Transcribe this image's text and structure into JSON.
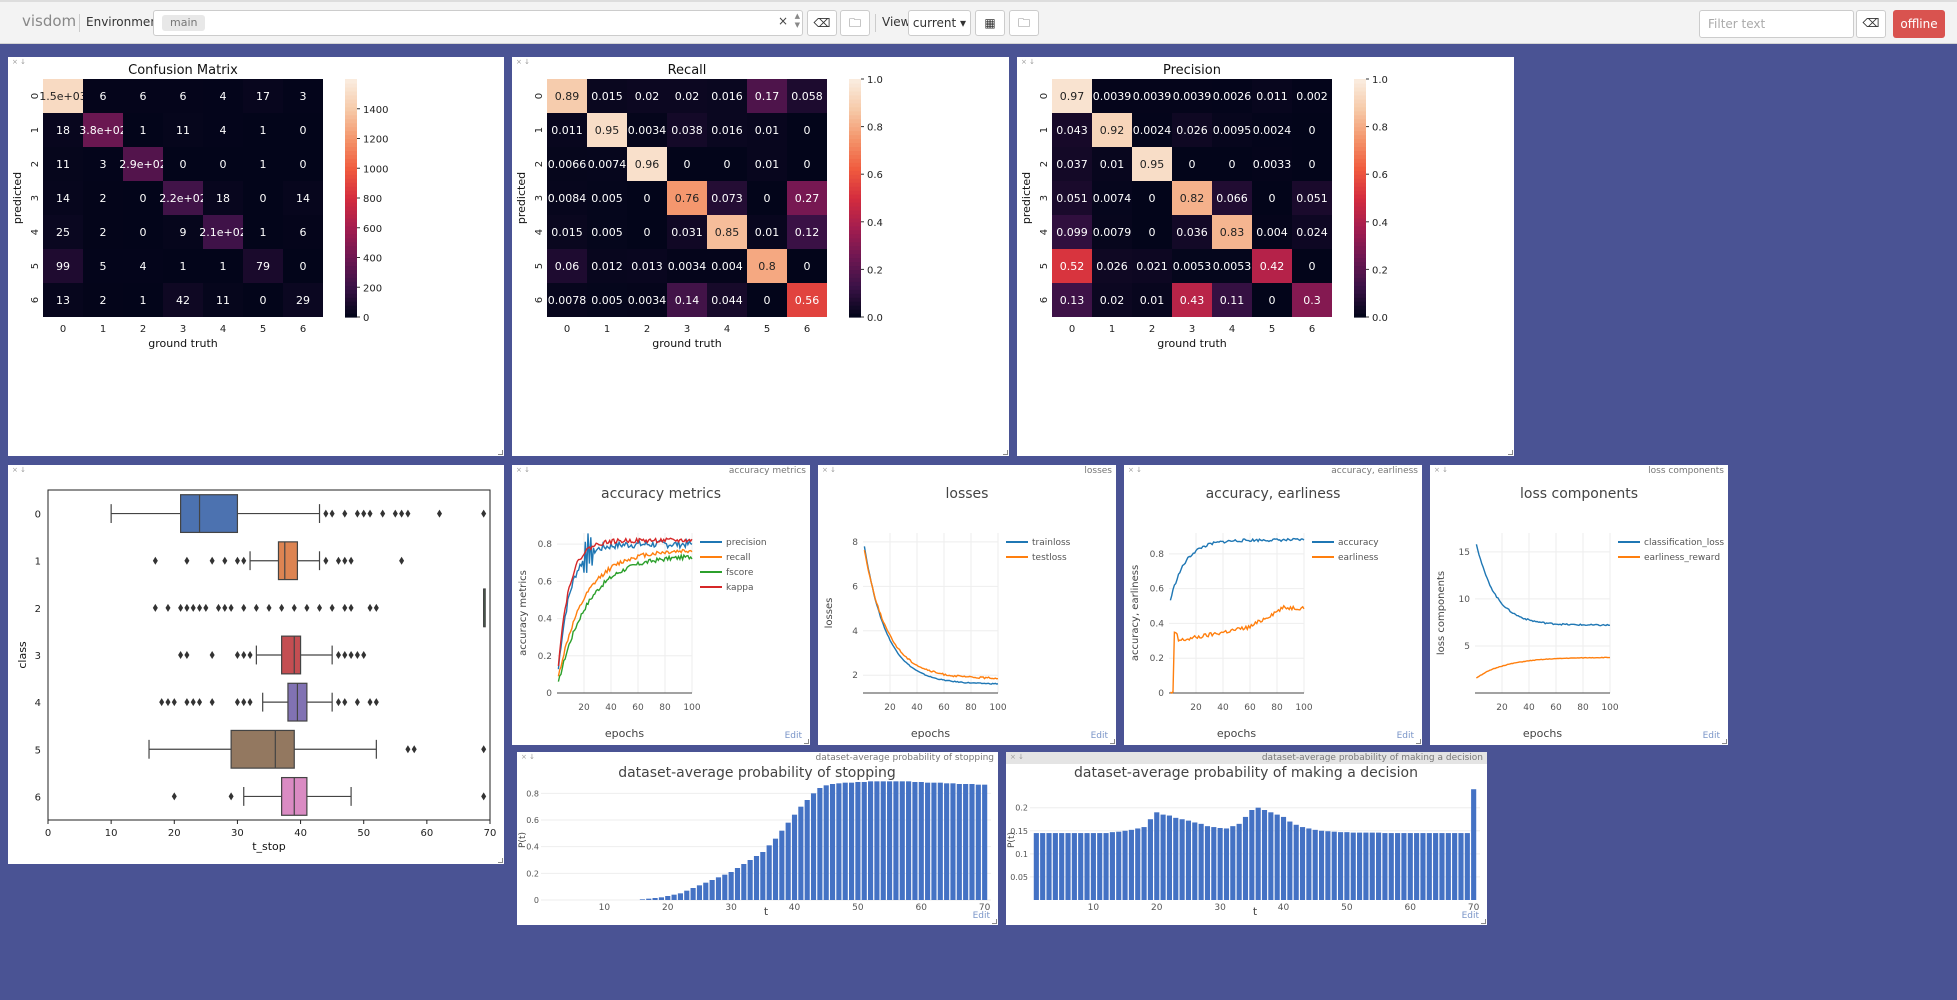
{
  "app": {
    "brand": "visdom",
    "env_label": "Environment",
    "env_value": "main",
    "view_label": "View",
    "view_value": "current",
    "filter_placeholder": "Filter text",
    "offline_label": "offline"
  },
  "panes": {
    "box": {
      "title": "",
      "xlabel": "t_stop",
      "ylabel": "class"
    },
    "acc": {
      "title": "accuracy metrics",
      "header": "accuracy metrics",
      "edit": "Edit"
    },
    "losses": {
      "title": "losses",
      "header": "losses",
      "edit": "Edit"
    },
    "ae": {
      "title": "accuracy, earliness",
      "header": "accuracy, earliness",
      "edit": "Edit"
    },
    "lc": {
      "title": "loss components",
      "header": "loss components",
      "edit": "Edit"
    },
    "stop": {
      "title": "dataset-average probability of stopping",
      "header": "dataset-average probability of stopping",
      "edit": "Edit"
    },
    "dec": {
      "title": "dataset-average probability of making a decision",
      "header": "dataset-average probability of making a decision",
      "edit": "Edit"
    }
  },
  "chart_data": [
    {
      "id": "cm",
      "type": "heatmap",
      "title": "Confusion Matrix",
      "xlabel": "ground truth",
      "ylabel": "predicted",
      "categories": [
        "0",
        "1",
        "2",
        "3",
        "4",
        "5",
        "6"
      ],
      "vmin": 0,
      "vmax": 1600,
      "colorbar_ticks": [
        "0",
        "200",
        "400",
        "600",
        "800",
        "1000",
        "1200",
        "1400"
      ],
      "colorbar_tick_values": [
        0,
        200,
        400,
        600,
        800,
        1000,
        1200,
        1400
      ],
      "values": [
        [
          1500,
          6,
          6,
          6,
          4,
          17,
          3
        ],
        [
          18,
          380,
          1,
          11,
          4,
          1,
          0
        ],
        [
          11,
          3,
          290,
          0,
          0,
          1,
          0
        ],
        [
          14,
          2,
          0,
          220,
          18,
          0,
          14
        ],
        [
          25,
          2,
          0,
          9,
          210,
          1,
          6
        ],
        [
          99,
          5,
          4,
          1,
          1,
          79,
          0
        ],
        [
          13,
          2,
          1,
          42,
          11,
          0,
          29
        ]
      ],
      "labels": [
        [
          "1.5e+03",
          "6",
          "6",
          "6",
          "4",
          "17",
          "3"
        ],
        [
          "18",
          "3.8e+02",
          "1",
          "11",
          "4",
          "1",
          "0"
        ],
        [
          "11",
          "3",
          "2.9e+02",
          "0",
          "0",
          "1",
          "0"
        ],
        [
          "14",
          "2",
          "0",
          "2.2e+02",
          "18",
          "0",
          "14"
        ],
        [
          "25",
          "2",
          "0",
          "9",
          "2.1e+02",
          "1",
          "6"
        ],
        [
          "99",
          "5",
          "4",
          "1",
          "1",
          "79",
          "0"
        ],
        [
          "13",
          "2",
          "1",
          "42",
          "11",
          "0",
          "29"
        ]
      ]
    },
    {
      "id": "rec",
      "type": "heatmap",
      "title": "Recall",
      "xlabel": "ground truth",
      "ylabel": "predicted",
      "categories": [
        "0",
        "1",
        "2",
        "3",
        "4",
        "5",
        "6"
      ],
      "vmin": 0,
      "vmax": 1,
      "colorbar_ticks": [
        "0.0",
        "0.2",
        "0.4",
        "0.6",
        "0.8",
        "1.0"
      ],
      "colorbar_tick_values": [
        0,
        0.2,
        0.4,
        0.6,
        0.8,
        1.0
      ],
      "values": [
        [
          0.89,
          0.015,
          0.02,
          0.02,
          0.016,
          0.17,
          0.058
        ],
        [
          0.011,
          0.95,
          0.0034,
          0.038,
          0.016,
          0.01,
          0
        ],
        [
          0.0066,
          0.0074,
          0.96,
          0,
          0,
          0.01,
          0
        ],
        [
          0.0084,
          0.005,
          0,
          0.76,
          0.073,
          0,
          0.27
        ],
        [
          0.015,
          0.005,
          0,
          0.031,
          0.85,
          0.01,
          0.12
        ],
        [
          0.06,
          0.012,
          0.013,
          0.0034,
          0.004,
          0.8,
          0
        ],
        [
          0.0078,
          0.005,
          0.0034,
          0.14,
          0.044,
          0,
          0.56
        ]
      ],
      "labels": [
        [
          "0.89",
          "0.015",
          "0.02",
          "0.02",
          "0.016",
          "0.17",
          "0.058"
        ],
        [
          "0.011",
          "0.95",
          "0.0034",
          "0.038",
          "0.016",
          "0.01",
          "0"
        ],
        [
          "0.0066",
          "0.0074",
          "0.96",
          "0",
          "0",
          "0.01",
          "0"
        ],
        [
          "0.0084",
          "0.005",
          "0",
          "0.76",
          "0.073",
          "0",
          "0.27"
        ],
        [
          "0.015",
          "0.005",
          "0",
          "0.031",
          "0.85",
          "0.01",
          "0.12"
        ],
        [
          "0.06",
          "0.012",
          "0.013",
          "0.0034",
          "0.004",
          "0.8",
          "0"
        ],
        [
          "0.0078",
          "0.005",
          "0.0034",
          "0.14",
          "0.044",
          "0",
          "0.56"
        ]
      ]
    },
    {
      "id": "prec",
      "type": "heatmap",
      "title": "Precision",
      "xlabel": "ground truth",
      "ylabel": "predicted",
      "categories": [
        "0",
        "1",
        "2",
        "3",
        "4",
        "5",
        "6"
      ],
      "vmin": 0,
      "vmax": 1,
      "colorbar_ticks": [
        "0.0",
        "0.2",
        "0.4",
        "0.6",
        "0.8",
        "1.0"
      ],
      "colorbar_tick_values": [
        0,
        0.2,
        0.4,
        0.6,
        0.8,
        1.0
      ],
      "values": [
        [
          0.97,
          0.0039,
          0.0039,
          0.0039,
          0.0026,
          0.011,
          0.002
        ],
        [
          0.043,
          0.92,
          0.0024,
          0.026,
          0.0095,
          0.0024,
          0
        ],
        [
          0.037,
          0.01,
          0.95,
          0,
          0,
          0.0033,
          0
        ],
        [
          0.051,
          0.0074,
          0,
          0.82,
          0.066,
          0,
          0.051
        ],
        [
          0.099,
          0.0079,
          0,
          0.036,
          0.83,
          0.004,
          0.024
        ],
        [
          0.52,
          0.026,
          0.021,
          0.0053,
          0.0053,
          0.42,
          0
        ],
        [
          0.13,
          0.02,
          0.01,
          0.43,
          0.11,
          0,
          0.3
        ]
      ],
      "labels": [
        [
          "0.97",
          "0.0039",
          "0.0039",
          "0.0039",
          "0.0026",
          "0.011",
          "0.002"
        ],
        [
          "0.043",
          "0.92",
          "0.0024",
          "0.026",
          "0.0095",
          "0.0024",
          "0"
        ],
        [
          "0.037",
          "0.01",
          "0.95",
          "0",
          "0",
          "0.0033",
          "0"
        ],
        [
          "0.051",
          "0.0074",
          "0",
          "0.82",
          "0.066",
          "0",
          "0.051"
        ],
        [
          "0.099",
          "0.0079",
          "0",
          "0.036",
          "0.83",
          "0.004",
          "0.024"
        ],
        [
          "0.52",
          "0.026",
          "0.021",
          "0.0053",
          "0.0053",
          "0.42",
          "0"
        ],
        [
          "0.13",
          "0.02",
          "0.01",
          "0.43",
          "0.11",
          "0",
          "0.3"
        ]
      ]
    },
    {
      "id": "box",
      "type": "box",
      "title": "",
      "xlabel": "t_stop",
      "ylabel": "class",
      "xlim": [
        0,
        70
      ],
      "xticks": [
        "0",
        "10",
        "20",
        "30",
        "40",
        "50",
        "60",
        "70"
      ],
      "categories": [
        "0",
        "1",
        "2",
        "3",
        "4",
        "5",
        "6"
      ],
      "colors": [
        "#4c72b0",
        "#dd8452",
        "#55a868",
        "#c44e52",
        "#8172b3",
        "#937860",
        "#da8bc3"
      ],
      "boxes": [
        {
          "wl": 10,
          "q1": 21,
          "med": 24,
          "q3": 30,
          "wh": 43,
          "outliers": [
            44,
            45,
            47,
            49,
            50,
            51,
            53,
            55,
            56,
            57,
            62,
            69
          ]
        },
        {
          "wl": 32,
          "q1": 36.5,
          "med": 37.5,
          "q3": 39.5,
          "wh": 43,
          "outliers": [
            17,
            22,
            26,
            28,
            30,
            31,
            44,
            46,
            47,
            48,
            56
          ]
        },
        {
          "wl": 69,
          "q1": 69,
          "med": 69,
          "q3": 69,
          "wh": 69,
          "outliers": [
            17,
            19,
            21,
            22,
            23,
            24,
            25,
            27,
            28,
            29,
            31,
            33,
            35,
            37,
            39,
            41,
            43,
            45,
            47,
            48,
            51,
            52
          ]
        },
        {
          "wl": 33,
          "q1": 37,
          "med": 39,
          "q3": 40,
          "wh": 45,
          "outliers": [
            21,
            22,
            26,
            30,
            31,
            32,
            46,
            47,
            48,
            49,
            50
          ]
        },
        {
          "wl": 34,
          "q1": 38,
          "med": 39.5,
          "q3": 41,
          "wh": 45,
          "outliers": [
            18,
            19,
            20,
            22,
            23,
            24,
            26,
            30,
            31,
            32,
            46,
            47,
            49,
            51,
            52
          ]
        },
        {
          "wl": 16,
          "q1": 29,
          "med": 36,
          "q3": 39,
          "wh": 52,
          "outliers": [
            57,
            58,
            69
          ]
        },
        {
          "wl": 31,
          "q1": 37,
          "med": 39,
          "q3": 41,
          "wh": 48,
          "outliers": [
            20,
            29,
            69
          ]
        }
      ]
    },
    {
      "id": "acc",
      "type": "line",
      "title": "accuracy metrics",
      "xlabel": "epochs",
      "ylabel": "accuracy metrics",
      "xlim": [
        0,
        100
      ],
      "ylim": [
        0,
        0.86
      ],
      "xticks": [
        20,
        40,
        60,
        80,
        100
      ],
      "yticks": [
        0,
        0.2,
        0.4,
        0.6,
        0.8
      ],
      "ytick_labels": [
        "0",
        "0.2",
        "0.4",
        "0.6",
        "0.8"
      ],
      "xtick_labels": [
        "20",
        "40",
        "60",
        "80",
        "100"
      ],
      "series": [
        {
          "name": "precision",
          "color": "#1f77b4",
          "start": 0.05,
          "end": 0.8,
          "k": 0.11,
          "noise": 0.02,
          "spike": [
            20,
            26,
            0.85
          ]
        },
        {
          "name": "recall",
          "color": "#ff7f0e",
          "start": 0.05,
          "end": 0.77,
          "k": 0.05,
          "noise": 0.012
        },
        {
          "name": "fscore",
          "color": "#2ca02c",
          "start": 0.02,
          "end": 0.74,
          "k": 0.045,
          "noise": 0.012
        },
        {
          "name": "kappa",
          "color": "#d62728",
          "start": 0.07,
          "end": 0.82,
          "k": 0.12,
          "noise": 0.012
        }
      ]
    },
    {
      "id": "losses",
      "type": "line",
      "title": "losses",
      "xlabel": "epochs",
      "ylabel": "losses",
      "xlim": [
        0,
        100
      ],
      "ylim": [
        1.2,
        8.4
      ],
      "xticks": [
        20,
        40,
        60,
        80,
        100
      ],
      "yticks": [
        2,
        4,
        6,
        8
      ],
      "ytick_labels": [
        "2",
        "4",
        "6",
        "8"
      ],
      "xtick_labels": [
        "20",
        "40",
        "60",
        "80",
        "100"
      ],
      "series": [
        {
          "name": "trainloss",
          "color": "#1f77b4",
          "start": 8.2,
          "end": 1.6,
          "k": 0.06,
          "noise": 0.02
        },
        {
          "name": "testloss",
          "color": "#ff7f0e",
          "start": 8.0,
          "end": 1.85,
          "k": 0.058,
          "noise": 0.04
        }
      ]
    },
    {
      "id": "ae",
      "type": "line",
      "title": "accuracy, earliness",
      "xlabel": "epochs",
      "ylabel": "accuracy, earliness",
      "xlim": [
        0,
        100
      ],
      "ylim": [
        0,
        0.92
      ],
      "xticks": [
        20,
        40,
        60,
        80,
        100
      ],
      "yticks": [
        0,
        0.2,
        0.4,
        0.6,
        0.8
      ],
      "ytick_labels": [
        "0",
        "0.2",
        "0.4",
        "0.6",
        "0.8"
      ],
      "xtick_labels": [
        "20",
        "40",
        "60",
        "80",
        "100"
      ],
      "series": [
        {
          "name": "accuracy",
          "color": "#1f77b4",
          "start": 0.5,
          "end": 0.88,
          "k": 0.09,
          "noise": 0.008
        },
        {
          "name": "earliness",
          "color": "#ff7f0e",
          "kind": "step",
          "noise": 0.012
        }
      ]
    },
    {
      "id": "lc",
      "type": "line",
      "title": "loss components",
      "xlabel": "epochs",
      "ylabel": "loss components",
      "xlim": [
        0,
        100
      ],
      "ylim": [
        0,
        17
      ],
      "xticks": [
        20,
        40,
        60,
        80,
        100
      ],
      "yticks": [
        5,
        10,
        15
      ],
      "ytick_labels": [
        "5",
        "10",
        "15"
      ],
      "xtick_labels": [
        "20",
        "40",
        "60",
        "80",
        "100"
      ],
      "series": [
        {
          "name": "classification_loss",
          "color": "#1f77b4",
          "start": 16.5,
          "end": 7.2,
          "k": 0.07,
          "noise": 0.08
        },
        {
          "name": "earliness_reward",
          "color": "#ff7f0e",
          "start": 1.5,
          "end": 3.8,
          "k": 0.045,
          "noise": 0.03
        }
      ]
    },
    {
      "id": "stop",
      "type": "bar",
      "title": "dataset-average probability of stopping",
      "xlabel": "t",
      "ylabel": "P(t)",
      "xlim": [
        0,
        71
      ],
      "ylim": [
        0,
        0.9
      ],
      "xticks": [
        10,
        20,
        30,
        40,
        50,
        60,
        70
      ],
      "xtick_labels": [
        "10",
        "20",
        "30",
        "40",
        "50",
        "60",
        "70"
      ],
      "yticks": [
        0,
        0.2,
        0.4,
        0.6,
        0.8
      ],
      "ytick_labels": [
        "0",
        "0.2",
        "0.4",
        "0.6",
        "0.8"
      ],
      "color": "#4472c4",
      "values": [
        0,
        0,
        0,
        0,
        0,
        0,
        0,
        0,
        0,
        0,
        0,
        0,
        0,
        0,
        0,
        0.005,
        0.01,
        0.015,
        0.02,
        0.03,
        0.04,
        0.05,
        0.07,
        0.09,
        0.11,
        0.13,
        0.15,
        0.17,
        0.19,
        0.21,
        0.24,
        0.27,
        0.3,
        0.33,
        0.36,
        0.41,
        0.46,
        0.52,
        0.58,
        0.64,
        0.7,
        0.75,
        0.8,
        0.84,
        0.86,
        0.87,
        0.875,
        0.88,
        0.88,
        0.885,
        0.885,
        0.89,
        0.89,
        0.89,
        0.89,
        0.89,
        0.89,
        0.89,
        0.885,
        0.885,
        0.88,
        0.88,
        0.88,
        0.875,
        0.875,
        0.87,
        0.87,
        0.87,
        0.865,
        0.865
      ]
    },
    {
      "id": "dec",
      "type": "bar",
      "title": "dataset-average probability of making a decision",
      "xlabel": "t",
      "ylabel": "P(t)",
      "xlim": [
        0,
        71
      ],
      "ylim": [
        0,
        0.26
      ],
      "xticks": [
        10,
        20,
        30,
        40,
        50,
        60,
        70
      ],
      "xtick_labels": [
        "10",
        "20",
        "30",
        "40",
        "50",
        "60",
        "70"
      ],
      "yticks": [
        0.05,
        0.1,
        0.15,
        0.2
      ],
      "ytick_labels": [
        "0.05",
        "0.1",
        "0.15",
        "0.2"
      ],
      "color": "#4472c4",
      "values": [
        0.145,
        0.145,
        0.145,
        0.145,
        0.145,
        0.145,
        0.145,
        0.145,
        0.145,
        0.145,
        0.145,
        0.145,
        0.147,
        0.148,
        0.15,
        0.152,
        0.155,
        0.158,
        0.175,
        0.19,
        0.185,
        0.183,
        0.178,
        0.175,
        0.172,
        0.168,
        0.165,
        0.16,
        0.158,
        0.156,
        0.155,
        0.16,
        0.165,
        0.18,
        0.195,
        0.2,
        0.195,
        0.19,
        0.185,
        0.18,
        0.17,
        0.163,
        0.158,
        0.155,
        0.152,
        0.15,
        0.149,
        0.148,
        0.147,
        0.147,
        0.146,
        0.146,
        0.146,
        0.146,
        0.146,
        0.145,
        0.145,
        0.145,
        0.145,
        0.145,
        0.145,
        0.145,
        0.145,
        0.145,
        0.145,
        0.145,
        0.145,
        0.145,
        0.145,
        0.24
      ]
    }
  ]
}
